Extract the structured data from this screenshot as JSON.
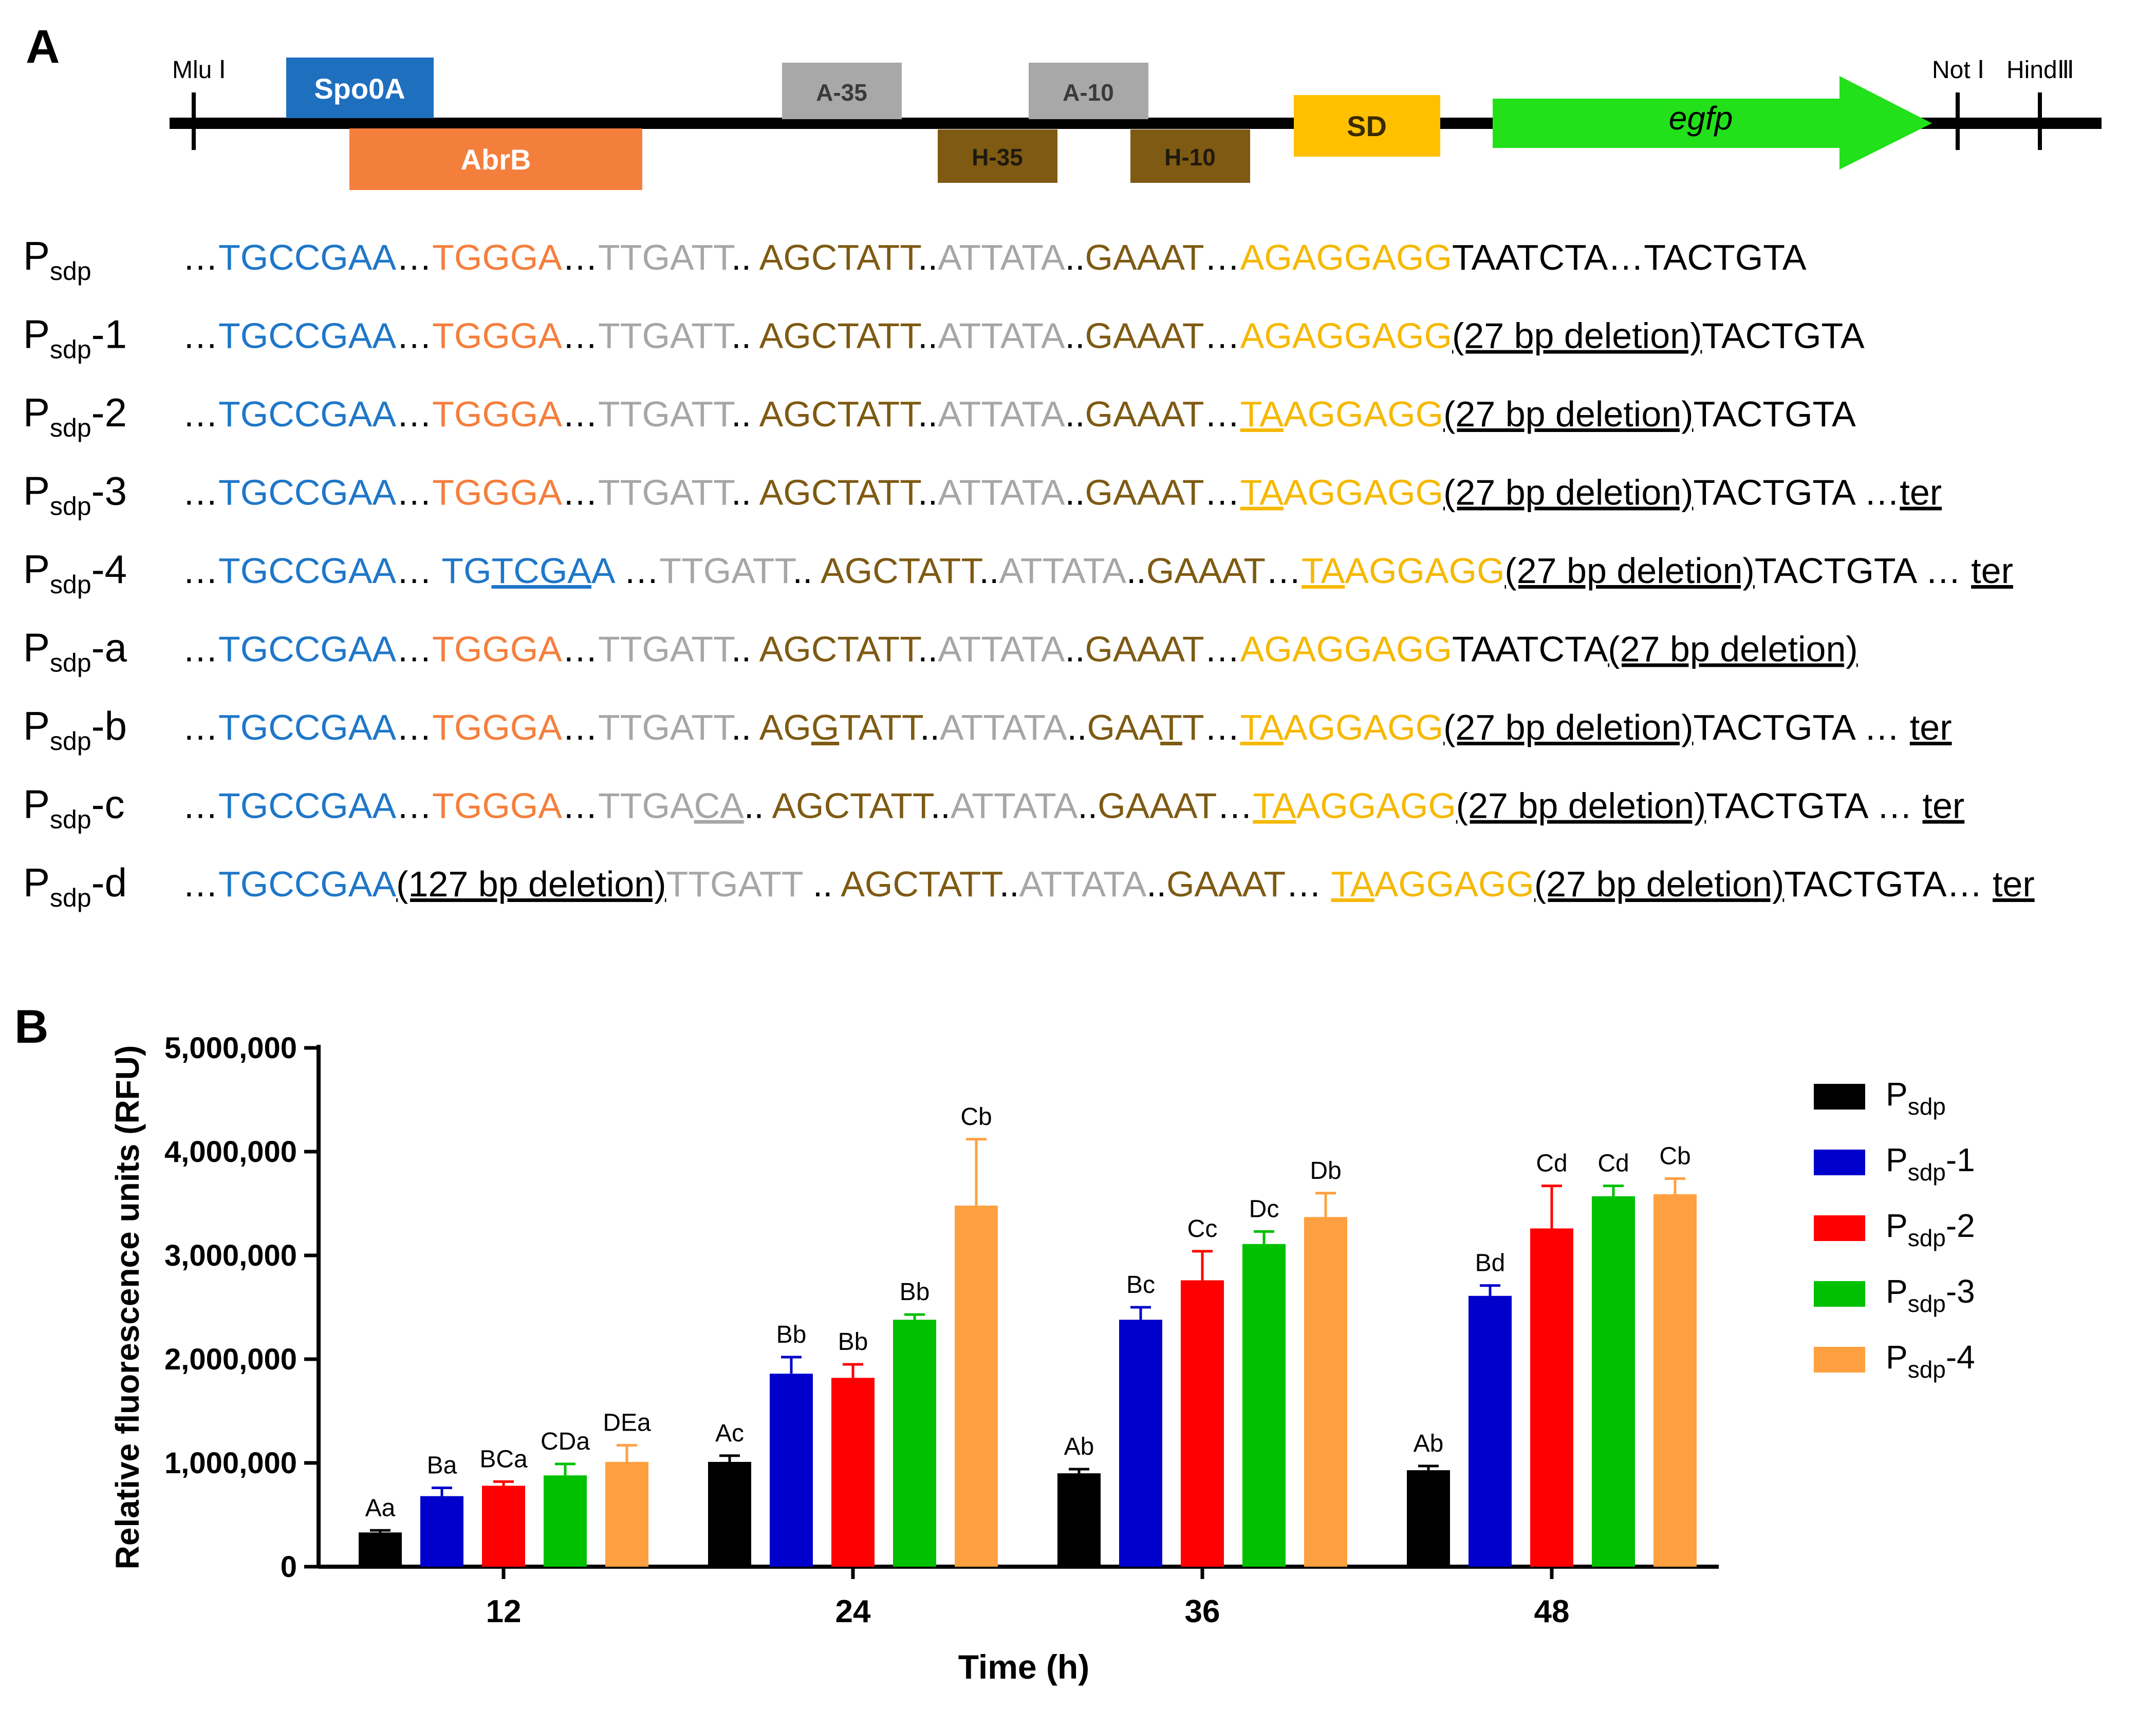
{
  "panel_a": {
    "letter": "A",
    "map": {
      "sites": [
        {
          "label": "Mlu Ⅰ"
        },
        {
          "label": "Not Ⅰ"
        },
        {
          "label": "HindⅢ"
        }
      ],
      "boxes": [
        {
          "label": "Spo0A",
          "color": "#1f6fbf",
          "text_color": "#ffffff"
        },
        {
          "label": "AbrB",
          "color": "#f47f3d",
          "text_color": "#ffffff"
        },
        {
          "label": "A-35",
          "color": "#a8a8a8",
          "text_color": "#3a3a3a"
        },
        {
          "label": "A-10",
          "color": "#a8a8a8",
          "text_color": "#3a3a3a"
        },
        {
          "label": "H-35",
          "color": "#7e5a12",
          "text_color": "#1f1a10"
        },
        {
          "label": "H-10",
          "color": "#7e5a12",
          "text_color": "#1f1a10"
        },
        {
          "label": "SD",
          "color": "#ffc000",
          "text_color": "#3a2a00"
        }
      ],
      "gene": {
        "label": "egfp",
        "color": "#22e01a"
      }
    },
    "colors": {
      "blue": "#1f77c8",
      "orange": "#f47f3d",
      "grey": "#a6a6a6",
      "brown": "#7e5a12",
      "gold": "#f6b800",
      "black": "#000000"
    },
    "sequences": [
      {
        "name": "P",
        "sub": "sdp",
        "suffix": "",
        "segments": [
          {
            "t": "…",
            "c": "black"
          },
          {
            "t": "TGCCGAA",
            "c": "blue"
          },
          {
            "t": "…",
            "c": "black"
          },
          {
            "t": "TGGGA",
            "c": "orange"
          },
          {
            "t": "…",
            "c": "black"
          },
          {
            "t": "TTGATT",
            "c": "grey"
          },
          {
            "t": ".. ",
            "c": "black"
          },
          {
            "t": "AGCTATT",
            "c": "brown"
          },
          {
            "t": "..",
            "c": "black"
          },
          {
            "t": "ATTATA",
            "c": "grey"
          },
          {
            "t": "..",
            "c": "black"
          },
          {
            "t": "GAAAT",
            "c": "brown"
          },
          {
            "t": "…",
            "c": "black"
          },
          {
            "t": "AGAGGAGG",
            "c": "gold"
          },
          {
            "t": "TAATCTA…TACTGTA",
            "c": "black"
          }
        ]
      },
      {
        "name": "P",
        "sub": "sdp",
        "suffix": "-1",
        "segments": [
          {
            "t": "…",
            "c": "black"
          },
          {
            "t": "TGCCGAA",
            "c": "blue"
          },
          {
            "t": "…",
            "c": "black"
          },
          {
            "t": "TGGGA",
            "c": "orange"
          },
          {
            "t": "…",
            "c": "black"
          },
          {
            "t": "TTGATT",
            "c": "grey"
          },
          {
            "t": ".. ",
            "c": "black"
          },
          {
            "t": "AGCTATT",
            "c": "brown"
          },
          {
            "t": "..",
            "c": "black"
          },
          {
            "t": "ATTATA",
            "c": "grey"
          },
          {
            "t": "..",
            "c": "black"
          },
          {
            "t": "GAAAT",
            "c": "brown"
          },
          {
            "t": "…",
            "c": "black"
          },
          {
            "t": "AGAGGAGG",
            "c": "gold"
          },
          {
            "t": "(27 bp deletion)",
            "c": "black",
            "u": true
          },
          {
            "t": "TACTGTA",
            "c": "black"
          }
        ]
      },
      {
        "name": "P",
        "sub": "sdp",
        "suffix": "-2",
        "segments": [
          {
            "t": "…",
            "c": "black"
          },
          {
            "t": "TGCCGAA",
            "c": "blue"
          },
          {
            "t": "…",
            "c": "black"
          },
          {
            "t": "TGGGA",
            "c": "orange"
          },
          {
            "t": "…",
            "c": "black"
          },
          {
            "t": "TTGATT",
            "c": "grey"
          },
          {
            "t": ".. ",
            "c": "black"
          },
          {
            "t": "AGCTATT",
            "c": "brown"
          },
          {
            "t": "..",
            "c": "black"
          },
          {
            "t": "ATTATA",
            "c": "grey"
          },
          {
            "t": "..",
            "c": "black"
          },
          {
            "t": "GAAAT",
            "c": "brown"
          },
          {
            "t": "…",
            "c": "black"
          },
          {
            "t": "TA",
            "c": "gold",
            "u": true
          },
          {
            "t": "AGGAGG",
            "c": "gold"
          },
          {
            "t": "(27 bp deletion)",
            "c": "black",
            "u": true
          },
          {
            "t": "TACTGTA",
            "c": "black"
          }
        ]
      },
      {
        "name": "P",
        "sub": "sdp",
        "suffix": "-3",
        "segments": [
          {
            "t": "…",
            "c": "black"
          },
          {
            "t": "TGCCGAA",
            "c": "blue"
          },
          {
            "t": "…",
            "c": "black"
          },
          {
            "t": "TGGGA",
            "c": "orange"
          },
          {
            "t": "…",
            "c": "black"
          },
          {
            "t": "TTGATT",
            "c": "grey"
          },
          {
            "t": ".. ",
            "c": "black"
          },
          {
            "t": "AGCTATT",
            "c": "brown"
          },
          {
            "t": "..",
            "c": "black"
          },
          {
            "t": "ATTATA",
            "c": "grey"
          },
          {
            "t": "..",
            "c": "black"
          },
          {
            "t": "GAAAT",
            "c": "brown"
          },
          {
            "t": "…",
            "c": "black"
          },
          {
            "t": "TA",
            "c": "gold",
            "u": true
          },
          {
            "t": "AGGAGG",
            "c": "gold"
          },
          {
            "t": "(27 bp deletion)",
            "c": "black",
            "u": true
          },
          {
            "t": "TACTGTA …",
            "c": "black"
          },
          {
            "t": "ter",
            "c": "black",
            "u": true
          }
        ]
      },
      {
        "name": "P",
        "sub": "sdp",
        "suffix": "-4",
        "segments": [
          {
            "t": "…",
            "c": "black"
          },
          {
            "t": "TGCCGAA",
            "c": "blue"
          },
          {
            "t": "… ",
            "c": "black"
          },
          {
            "t": "TG",
            "c": "blue"
          },
          {
            "t": "TCGA",
            "c": "blue",
            "u": true
          },
          {
            "t": "A",
            "c": "blue"
          },
          {
            "t": " …",
            "c": "black"
          },
          {
            "t": "TTGATT",
            "c": "grey"
          },
          {
            "t": ".. ",
            "c": "black"
          },
          {
            "t": "AGCTATT",
            "c": "brown"
          },
          {
            "t": "..",
            "c": "black"
          },
          {
            "t": "ATTATA",
            "c": "grey"
          },
          {
            "t": "..",
            "c": "black"
          },
          {
            "t": "GAAAT",
            "c": "brown"
          },
          {
            "t": "…",
            "c": "black"
          },
          {
            "t": "TA",
            "c": "gold",
            "u": true
          },
          {
            "t": "AGGAGG",
            "c": "gold"
          },
          {
            "t": "(27 bp deletion)",
            "c": "black",
            "u": true
          },
          {
            "t": "TACTGTA … ",
            "c": "black"
          },
          {
            "t": "ter",
            "c": "black",
            "u": true
          }
        ]
      },
      {
        "name": "P",
        "sub": "sdp",
        "suffix": "-a",
        "segments": [
          {
            "t": "…",
            "c": "black"
          },
          {
            "t": "TGCCGAA",
            "c": "blue"
          },
          {
            "t": "…",
            "c": "black"
          },
          {
            "t": "TGGGA",
            "c": "orange"
          },
          {
            "t": "…",
            "c": "black"
          },
          {
            "t": "TTGATT",
            "c": "grey"
          },
          {
            "t": ".. ",
            "c": "black"
          },
          {
            "t": "AGCTATT",
            "c": "brown"
          },
          {
            "t": "..",
            "c": "black"
          },
          {
            "t": "ATTATA",
            "c": "grey"
          },
          {
            "t": "..",
            "c": "black"
          },
          {
            "t": "GAAAT",
            "c": "brown"
          },
          {
            "t": "…",
            "c": "black"
          },
          {
            "t": "AGAGGAGG",
            "c": "gold"
          },
          {
            "t": "TAATCTA",
            "c": "black"
          },
          {
            "t": "(27 bp deletion)",
            "c": "black",
            "u": true
          }
        ]
      },
      {
        "name": "P",
        "sub": "sdp",
        "suffix": "-b",
        "segments": [
          {
            "t": "…",
            "c": "black"
          },
          {
            "t": "TGCCGAA",
            "c": "blue"
          },
          {
            "t": "…",
            "c": "black"
          },
          {
            "t": "TGGGA",
            "c": "orange"
          },
          {
            "t": "…",
            "c": "black"
          },
          {
            "t": "TTGATT",
            "c": "grey"
          },
          {
            "t": ".. ",
            "c": "black"
          },
          {
            "t": "AG",
            "c": "brown"
          },
          {
            "t": "G",
            "c": "brown",
            "u": true
          },
          {
            "t": "TATT",
            "c": "brown"
          },
          {
            "t": "..",
            "c": "black"
          },
          {
            "t": "ATTATA",
            "c": "grey"
          },
          {
            "t": "..",
            "c": "black"
          },
          {
            "t": "GAA",
            "c": "brown"
          },
          {
            "t": "T",
            "c": "brown",
            "u": true
          },
          {
            "t": "T",
            "c": "brown"
          },
          {
            "t": "…",
            "c": "black"
          },
          {
            "t": "TA",
            "c": "gold",
            "u": true
          },
          {
            "t": "AGGAGG",
            "c": "gold"
          },
          {
            "t": "(27 bp deletion)",
            "c": "black",
            "u": true
          },
          {
            "t": "TACTGTA … ",
            "c": "black"
          },
          {
            "t": "ter",
            "c": "black",
            "u": true
          }
        ]
      },
      {
        "name": "P",
        "sub": "sdp",
        "suffix": "-c",
        "segments": [
          {
            "t": "…",
            "c": "black"
          },
          {
            "t": "TGCCGAA",
            "c": "blue"
          },
          {
            "t": "…",
            "c": "black"
          },
          {
            "t": "TGGGA",
            "c": "orange"
          },
          {
            "t": "…",
            "c": "black"
          },
          {
            "t": "TTGA",
            "c": "grey"
          },
          {
            "t": "CA",
            "c": "grey",
            "u": true
          },
          {
            "t": ".. ",
            "c": "black"
          },
          {
            "t": "AGCTATT",
            "c": "brown"
          },
          {
            "t": "..",
            "c": "black"
          },
          {
            "t": "ATTATA",
            "c": "grey"
          },
          {
            "t": "..",
            "c": "black"
          },
          {
            "t": "GAAAT",
            "c": "brown"
          },
          {
            "t": "…",
            "c": "black"
          },
          {
            "t": "TA",
            "c": "gold",
            "u": true
          },
          {
            "t": "AGGAGG",
            "c": "gold"
          },
          {
            "t": "(27 bp deletion)",
            "c": "black",
            "u": true
          },
          {
            "t": "TACTGTA … ",
            "c": "black"
          },
          {
            "t": "ter",
            "c": "black",
            "u": true
          }
        ]
      },
      {
        "name": "P",
        "sub": "sdp",
        "suffix": "-d",
        "segments": [
          {
            "t": "…",
            "c": "black"
          },
          {
            "t": "TGCCGAA",
            "c": "blue"
          },
          {
            "t": "(127 bp deletion)",
            "c": "black",
            "u": true
          },
          {
            "t": "TTGATT",
            "c": "grey"
          },
          {
            "t": " .. ",
            "c": "black"
          },
          {
            "t": "AGCTATT",
            "c": "brown"
          },
          {
            "t": "..",
            "c": "black"
          },
          {
            "t": "ATTATA",
            "c": "grey"
          },
          {
            "t": "..",
            "c": "black"
          },
          {
            "t": "GAAAT",
            "c": "brown"
          },
          {
            "t": "… ",
            "c": "black"
          },
          {
            "t": "TA",
            "c": "gold",
            "u": true
          },
          {
            "t": "AGGAGG",
            "c": "gold"
          },
          {
            "t": "(27 bp deletion)",
            "c": "black",
            "u": true
          },
          {
            "t": "TACTGTA… ",
            "c": "black"
          },
          {
            "t": "ter",
            "c": "black",
            "u": true
          }
        ]
      }
    ]
  },
  "panel_b": {
    "letter": "B"
  },
  "chart_data": {
    "type": "bar",
    "title": "",
    "xlabel": "Time (h)",
    "ylabel": "Relative fluorescence units (RFU)",
    "ylim": [
      0,
      5000000
    ],
    "yticks": [
      0,
      1000000,
      2000000,
      3000000,
      4000000,
      5000000
    ],
    "ytick_labels": [
      "0",
      "1,000,000",
      "2,000,000",
      "3,000,000",
      "4,000,000",
      "5,000,000"
    ],
    "categories": [
      "12",
      "24",
      "36",
      "48"
    ],
    "legend_position": "right",
    "series": [
      {
        "name": "P",
        "sub": "sdp",
        "suffix": "",
        "color": "#000000",
        "values": [
          330000,
          1010000,
          900000,
          930000
        ],
        "errors": [
          20000,
          60000,
          40000,
          40000
        ],
        "labels": [
          "Aa",
          "Ac",
          "Ab",
          "Ab"
        ]
      },
      {
        "name": "P",
        "sub": "sdp",
        "suffix": "-1",
        "color": "#0000cc",
        "values": [
          680000,
          1860000,
          2380000,
          2610000
        ],
        "errors": [
          80000,
          160000,
          120000,
          100000
        ],
        "labels": [
          "Ba",
          "Bb",
          "Bc",
          "Bd"
        ]
      },
      {
        "name": "P",
        "sub": "sdp",
        "suffix": "-2",
        "color": "#ff0000",
        "values": [
          780000,
          1820000,
          2760000,
          3260000
        ],
        "errors": [
          40000,
          130000,
          280000,
          410000
        ],
        "labels": [
          "BCa",
          "Bb",
          "Cc",
          "Cd"
        ]
      },
      {
        "name": "P",
        "sub": "sdp",
        "suffix": "-3",
        "color": "#00c000",
        "values": [
          880000,
          2380000,
          3110000,
          3570000
        ],
        "errors": [
          110000,
          50000,
          120000,
          100000
        ],
        "labels": [
          "CDa",
          "Bb",
          "Dc",
          "Cd"
        ]
      },
      {
        "name": "P",
        "sub": "sdp",
        "suffix": "-4",
        "color": "#ffa040",
        "values": [
          1010000,
          3480000,
          3370000,
          3590000
        ],
        "errors": [
          160000,
          640000,
          230000,
          150000
        ],
        "labels": [
          "DEa",
          "Cb",
          "Db",
          "Cb"
        ]
      }
    ]
  }
}
